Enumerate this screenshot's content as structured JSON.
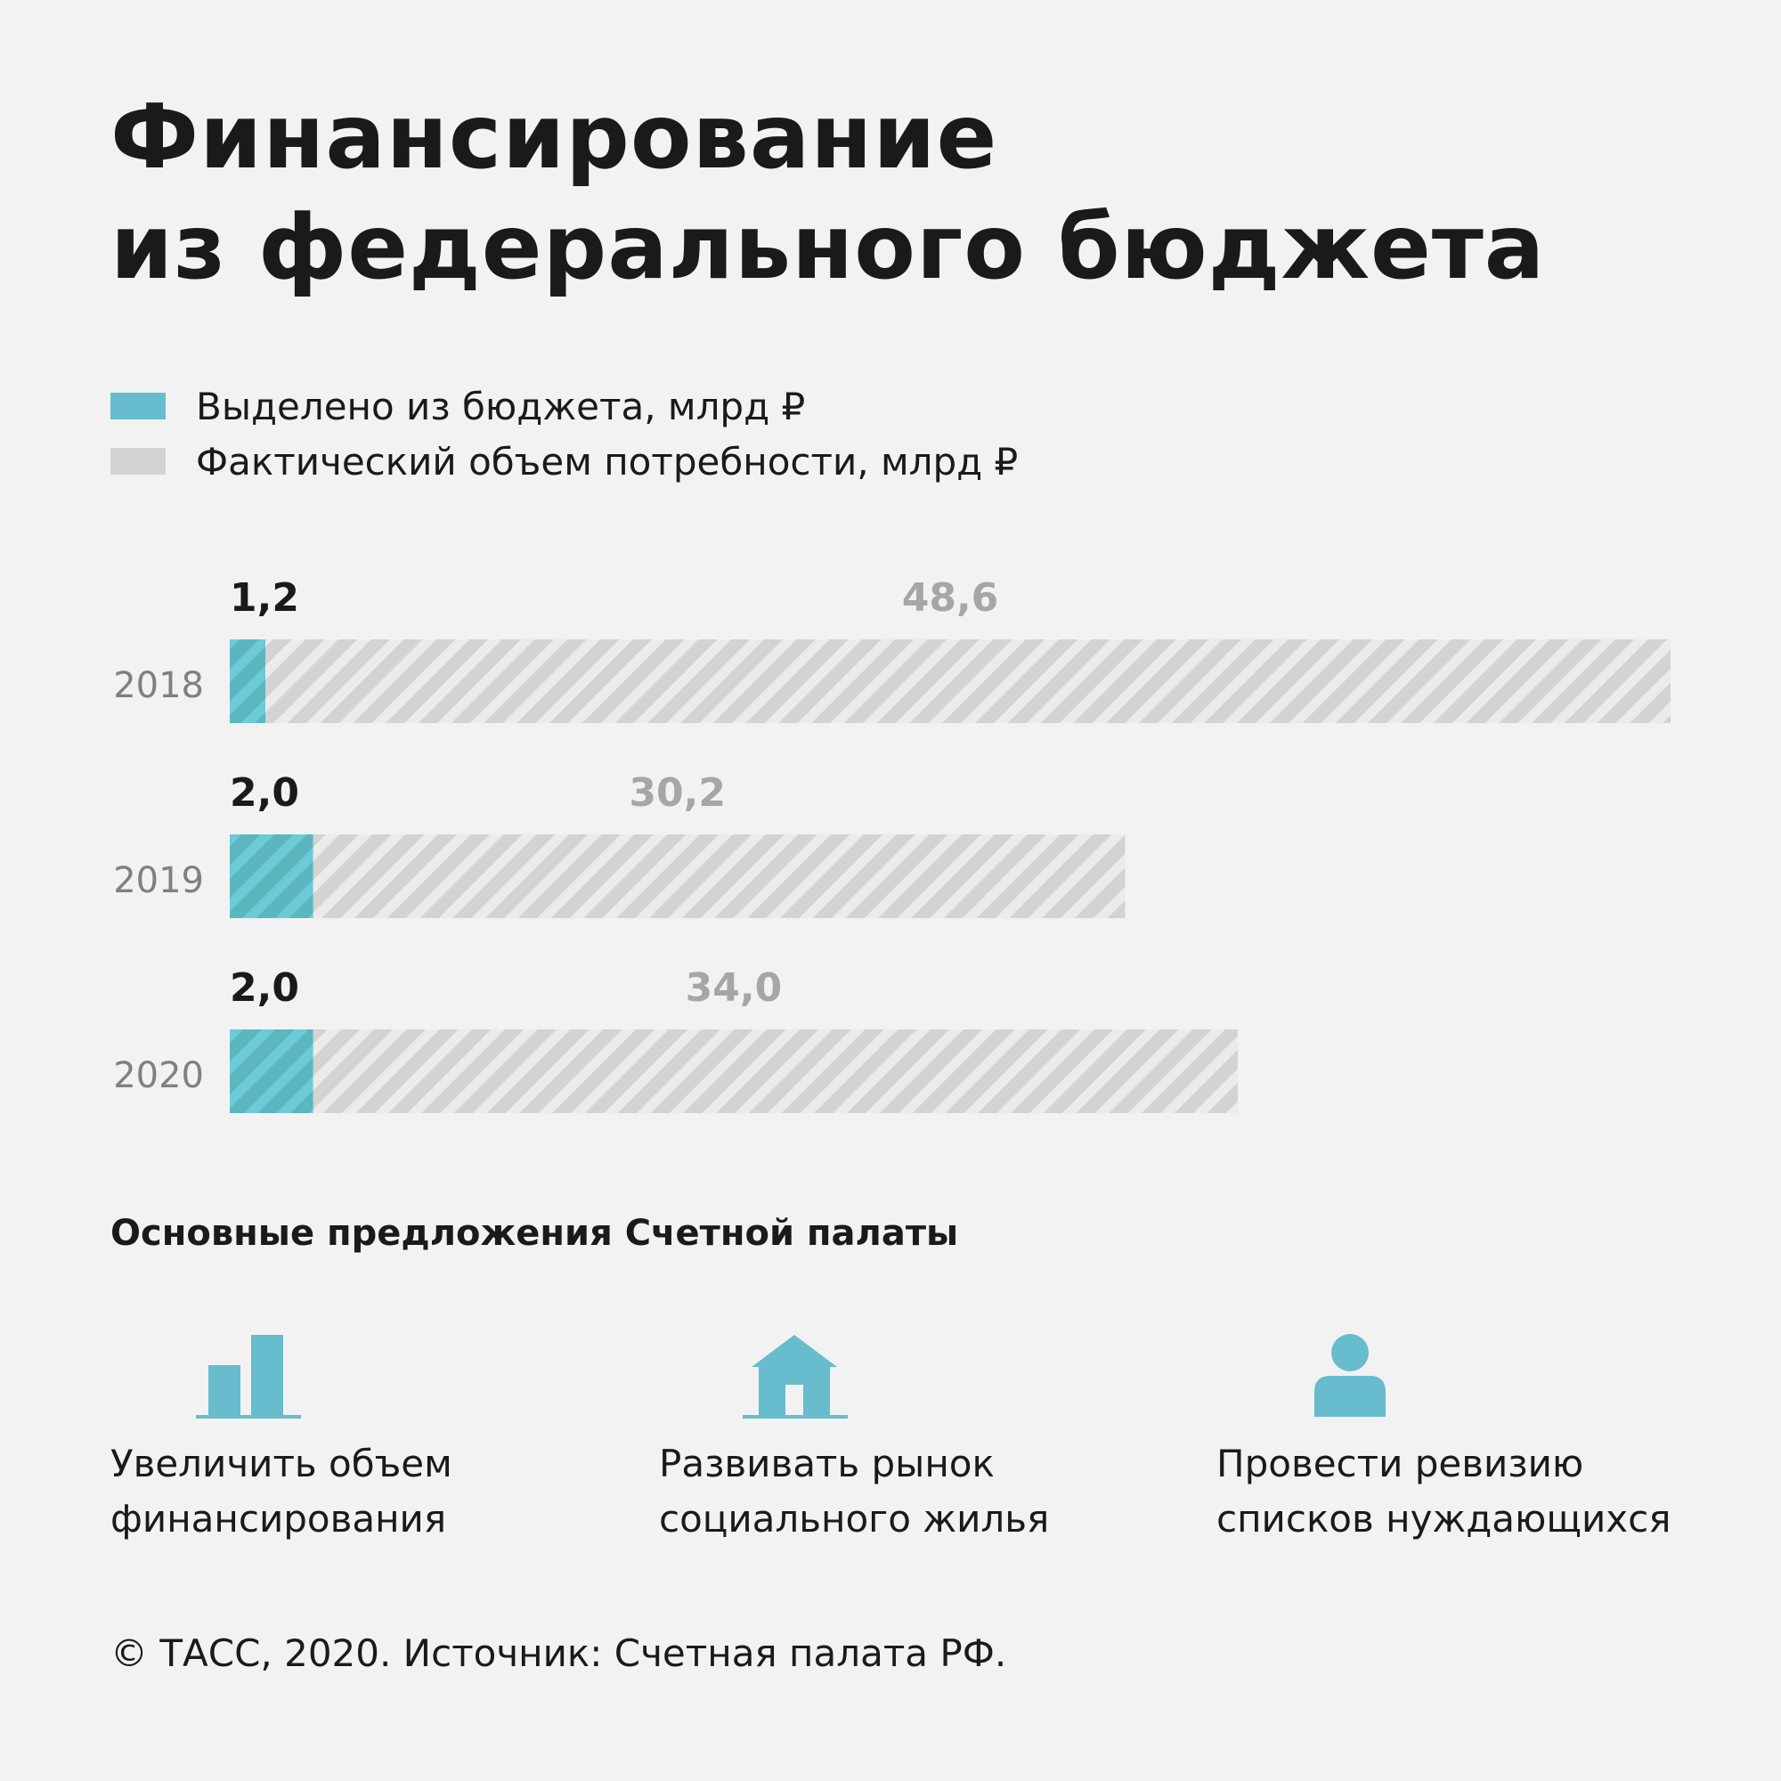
{
  "title_lines": [
    "Финансирование",
    "из федерального бюджета"
  ],
  "colors": {
    "allocated": "#67bccd",
    "need": "#d3d3d3",
    "need_label": "#a6a6a6",
    "year_label": "#808080"
  },
  "chart_data": {
    "type": "bar",
    "orientation": "horizontal",
    "categories": [
      "2018",
      "2019",
      "2020"
    ],
    "series": [
      {
        "name": "Выделено из бюджета, млрд ₽",
        "values": [
          1.2,
          2.0,
          2.0
        ],
        "labels": [
          "1,2",
          "2,0",
          "2,0"
        ],
        "color": "#67bccd"
      },
      {
        "name": "Фактический объем потребности, млрд ₽",
        "values": [
          48.6,
          30.2,
          34.0
        ],
        "labels": [
          "48,6",
          "30,2",
          "34,0"
        ],
        "color": "#d3d3d3",
        "pattern": "diagonal-stripes"
      }
    ],
    "xlim": [
      0,
      48.6
    ],
    "grid": false,
    "legend": "top-left"
  },
  "proposals": {
    "title": "Основные предложения Счетной палаты",
    "items": [
      {
        "icon": "bar-chart-icon",
        "text": "Увеличить объем\nфинансирования"
      },
      {
        "icon": "house-icon",
        "text": "Развивать рынок\nсоциального жилья"
      },
      {
        "icon": "person-icon",
        "text": "Провести ревизию\nсписков нуждающихся"
      }
    ]
  },
  "footer": "© ТАСС, 2020. Источник: Счетная палата РФ."
}
